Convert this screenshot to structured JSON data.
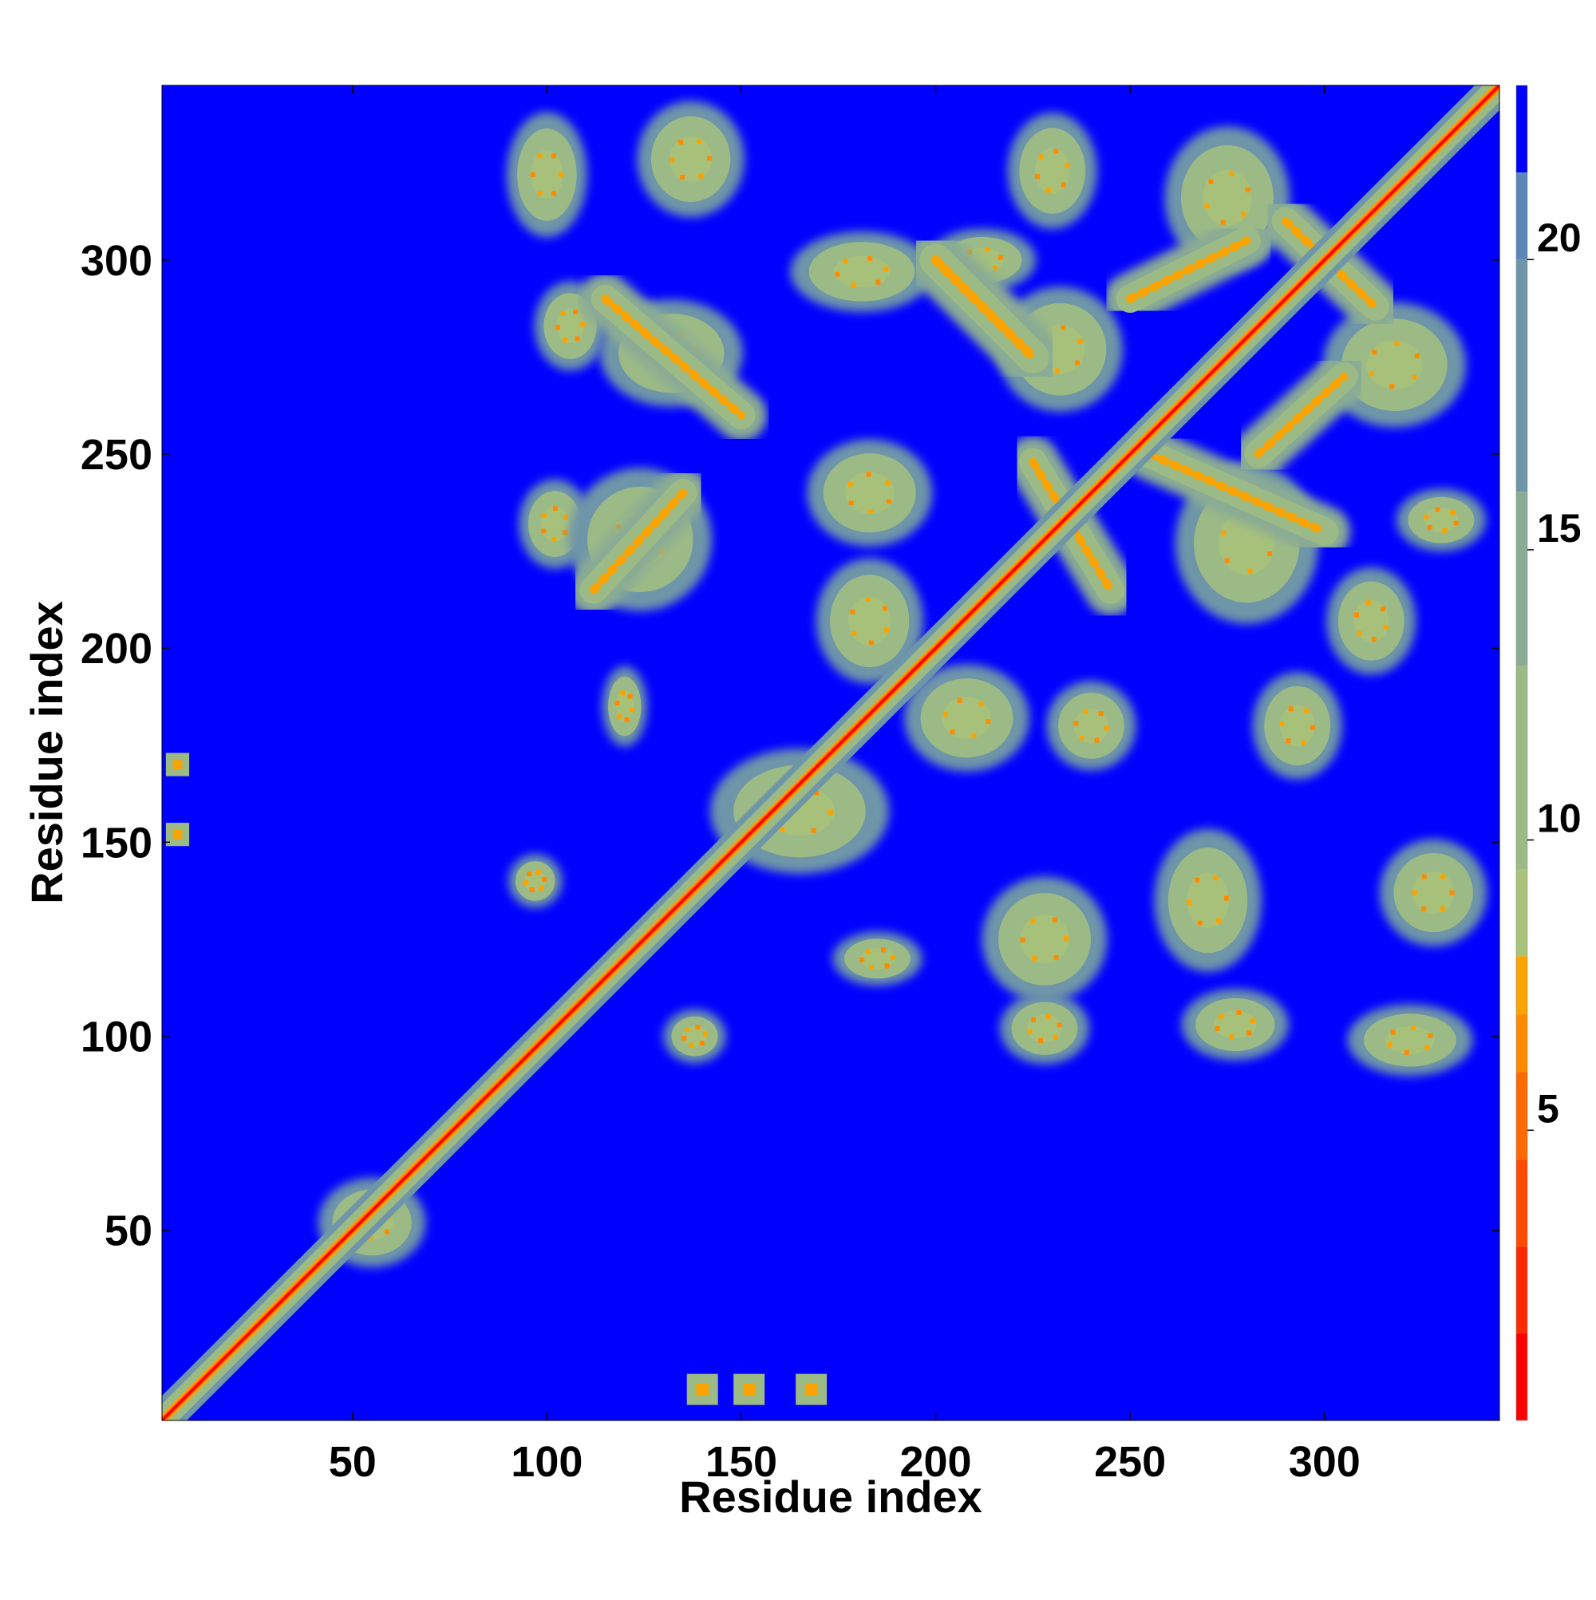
{
  "chart_data": {
    "type": "heatmap",
    "title": "",
    "xlabel": "Residue index",
    "ylabel": "Residue index",
    "xlim": [
      1,
      345
    ],
    "ylim": [
      1,
      345
    ],
    "x_ticks": [
      50,
      100,
      150,
      200,
      250,
      300
    ],
    "y_ticks": [
      50,
      100,
      150,
      200,
      250,
      300
    ],
    "colorbar": {
      "range": [
        0,
        23
      ],
      "ticks": [
        5,
        10,
        15,
        20
      ],
      "bands": [
        {
          "from": 0,
          "to": 1.5,
          "color": "#ff0000"
        },
        {
          "from": 1.5,
          "to": 3,
          "color": "#ff2a00"
        },
        {
          "from": 3,
          "to": 4.5,
          "color": "#ff4b00"
        },
        {
          "from": 4.5,
          "to": 6,
          "color": "#ff6a00"
        },
        {
          "from": 6,
          "to": 7,
          "color": "#ff8a00"
        },
        {
          "from": 7,
          "to": 8,
          "color": "#fba300"
        },
        {
          "from": 8,
          "to": 9.5,
          "color": "#a9c27a"
        },
        {
          "from": 9.5,
          "to": 13,
          "color": "#9cba86"
        },
        {
          "from": 13,
          "to": 16,
          "color": "#8aac94"
        },
        {
          "from": 16,
          "to": 20,
          "color": "#6e96a8"
        },
        {
          "from": 20,
          "to": 21.5,
          "color": "#5a86b8"
        },
        {
          "from": 21.5,
          "to": 23,
          "color": "#0000ff"
        }
      ]
    },
    "background_color": "#0000ff",
    "diagonal": {
      "from": 1,
      "to": 345
    },
    "contact_features": [
      {
        "type": "blob",
        "x": 100,
        "y": 322,
        "rx": 9,
        "ry": 14
      },
      {
        "type": "blob",
        "x": 137,
        "y": 326,
        "rx": 12,
        "ry": 13
      },
      {
        "type": "blob",
        "x": 106,
        "y": 283,
        "rx": 8,
        "ry": 10
      },
      {
        "type": "blob",
        "x": 132,
        "y": 276,
        "rx": 16,
        "ry": 12
      },
      {
        "type": "blob",
        "x": 181,
        "y": 297,
        "rx": 16,
        "ry": 9
      },
      {
        "type": "blob",
        "x": 212,
        "y": 300,
        "rx": 12,
        "ry": 7
      },
      {
        "type": "blob",
        "x": 230,
        "y": 323,
        "rx": 10,
        "ry": 13
      },
      {
        "type": "blob",
        "x": 275,
        "y": 316,
        "rx": 14,
        "ry": 16
      },
      {
        "type": "blob",
        "x": 232,
        "y": 277,
        "rx": 14,
        "ry": 14
      },
      {
        "type": "blob",
        "x": 318,
        "y": 273,
        "rx": 16,
        "ry": 14
      },
      {
        "type": "blob",
        "x": 102,
        "y": 232,
        "rx": 8,
        "ry": 10
      },
      {
        "type": "blob",
        "x": 124,
        "y": 228,
        "rx": 16,
        "ry": 16
      },
      {
        "type": "blob",
        "x": 183,
        "y": 240,
        "rx": 14,
        "ry": 12
      },
      {
        "type": "blob",
        "x": 183,
        "y": 207,
        "rx": 12,
        "ry": 14
      },
      {
        "type": "blob",
        "x": 280,
        "y": 227,
        "rx": 16,
        "ry": 18
      },
      {
        "type": "blob",
        "x": 312,
        "y": 207,
        "rx": 10,
        "ry": 12
      },
      {
        "type": "blob",
        "x": 330,
        "y": 233,
        "rx": 10,
        "ry": 7
      },
      {
        "type": "blob",
        "x": 120,
        "y": 185,
        "rx": 5,
        "ry": 9
      },
      {
        "type": "blob",
        "x": 208,
        "y": 182,
        "rx": 14,
        "ry": 12
      },
      {
        "type": "blob",
        "x": 240,
        "y": 180,
        "rx": 10,
        "ry": 10
      },
      {
        "type": "blob",
        "x": 293,
        "y": 180,
        "rx": 10,
        "ry": 12
      },
      {
        "type": "blob",
        "x": 165,
        "y": 158,
        "rx": 20,
        "ry": 14
      },
      {
        "type": "blob",
        "x": 328,
        "y": 137,
        "rx": 12,
        "ry": 12
      },
      {
        "type": "blob",
        "x": 228,
        "y": 125,
        "rx": 14,
        "ry": 14
      },
      {
        "type": "blob",
        "x": 270,
        "y": 135,
        "rx": 12,
        "ry": 16
      },
      {
        "type": "blob",
        "x": 185,
        "y": 120,
        "rx": 10,
        "ry": 6
      },
      {
        "type": "blob",
        "x": 97,
        "y": 140,
        "rx": 6,
        "ry": 6
      },
      {
        "type": "blob",
        "x": 138,
        "y": 100,
        "rx": 7,
        "ry": 6
      },
      {
        "type": "blob",
        "x": 228,
        "y": 102,
        "rx": 10,
        "ry": 8
      },
      {
        "type": "blob",
        "x": 277,
        "y": 103,
        "rx": 12,
        "ry": 8
      },
      {
        "type": "blob",
        "x": 322,
        "y": 99,
        "rx": 14,
        "ry": 8
      },
      {
        "type": "blob",
        "x": 55,
        "y": 52,
        "rx": 12,
        "ry": 10
      },
      {
        "type": "band",
        "x1": 225,
        "y1": 248,
        "x2": 245,
        "y2": 215,
        "width": 6
      },
      {
        "type": "band",
        "x1": 283,
        "y1": 250,
        "x2": 305,
        "y2": 270,
        "width": 6
      },
      {
        "type": "band",
        "x1": 290,
        "y1": 310,
        "x2": 313,
        "y2": 288,
        "width": 6
      },
      {
        "type": "band",
        "x1": 250,
        "y1": 290,
        "x2": 280,
        "y2": 305,
        "width": 6
      },
      {
        "type": "band",
        "x1": 255,
        "y1": 250,
        "x2": 300,
        "y2": 230,
        "width": 6
      },
      {
        "type": "band",
        "x1": 200,
        "y1": 300,
        "x2": 225,
        "y2": 275,
        "width": 7
      },
      {
        "type": "band",
        "x1": 112,
        "y1": 215,
        "x2": 135,
        "y2": 240,
        "width": 6
      },
      {
        "type": "band",
        "x1": 115,
        "y1": 290,
        "x2": 150,
        "y2": 260,
        "width": 6
      },
      {
        "type": "speck",
        "x": 5,
        "y": 170,
        "rx": 3,
        "ry": 3
      },
      {
        "type": "speck",
        "x": 5,
        "y": 152,
        "rx": 3,
        "ry": 3
      },
      {
        "type": "speck",
        "x": 140,
        "y": 9,
        "rx": 4,
        "ry": 4
      },
      {
        "type": "speck",
        "x": 152,
        "y": 9,
        "rx": 4,
        "ry": 4
      },
      {
        "type": "speck",
        "x": 168,
        "y": 9,
        "rx": 4,
        "ry": 4
      }
    ]
  }
}
